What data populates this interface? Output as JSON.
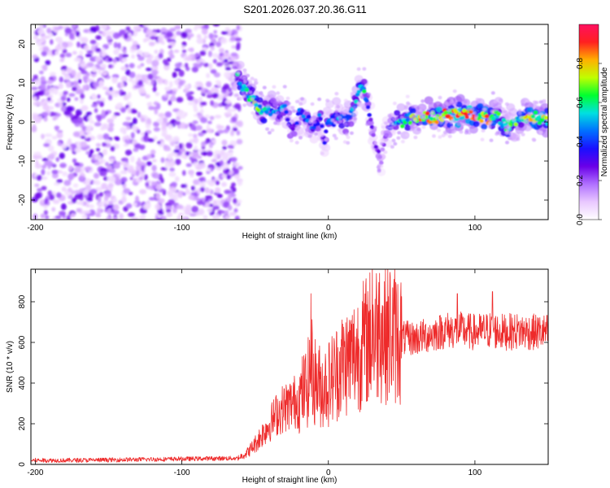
{
  "title": "S201.2026.037.20.36.G11",
  "chart_data": [
    {
      "type": "heatmap",
      "xlabel": "Height of straight line (km)",
      "ylabel": "Frequency (Hz)",
      "xlim": [
        -203,
        150
      ],
      "ylim": [
        -25,
        25
      ],
      "xticks": [
        -200,
        -100,
        0,
        100
      ],
      "yticks": [
        -20,
        -10,
        0,
        10,
        20
      ],
      "colorbar": {
        "label": "Normalized spectral amplitude",
        "range": [
          0,
          1
        ],
        "ticks": [
          0.0,
          0.2,
          0.4,
          0.6,
          0.8
        ],
        "tick_labels": [
          "0.0",
          "0.2",
          "0.4",
          "0.6",
          "0.8"
        ],
        "colors": [
          "#ffffff",
          "#e9c8ff",
          "#b070ff",
          "#6a00e8",
          "#1a10ff",
          "#0070ff",
          "#00e0e0",
          "#00ff30",
          "#c0ff00",
          "#ffb000",
          "#ff2020",
          "#ff1060"
        ]
      },
      "noise_region_x": [
        -203,
        -62
      ],
      "ridge": {
        "x": [
          -62,
          -58,
          -55,
          -50,
          -45,
          -40,
          -35,
          -30,
          -28,
          -25,
          -22,
          -20,
          -16,
          -12,
          -10,
          -6,
          -3,
          0,
          3,
          6,
          9,
          12,
          16,
          19,
          21,
          23,
          25,
          27,
          29,
          30,
          32,
          34,
          36,
          38,
          40,
          43,
          47,
          55,
          65,
          75,
          85,
          95,
          105,
          110,
          115,
          118,
          122,
          128,
          135,
          142,
          150
        ],
        "y": [
          11,
          9,
          7,
          5,
          3,
          3,
          3,
          4,
          2,
          -2,
          0,
          2,
          1,
          0,
          -2,
          1,
          -5,
          1,
          0,
          2,
          1,
          0,
          2,
          5,
          9,
          10,
          7,
          4,
          0,
          -3,
          -6,
          -8,
          -10,
          -5,
          -3,
          -1,
          0,
          1,
          1,
          1,
          2,
          2,
          1,
          1,
          2,
          0,
          -1,
          0,
          1,
          1,
          1
        ],
        "intensity": [
          0.5,
          0.55,
          0.6,
          0.65,
          0.55,
          0.5,
          0.45,
          0.45,
          0.35,
          0.3,
          0.35,
          0.4,
          0.4,
          0.4,
          0.35,
          0.4,
          0.35,
          0.4,
          0.4,
          0.45,
          0.5,
          0.5,
          0.45,
          0.5,
          0.55,
          0.6,
          0.5,
          0.4,
          0.3,
          0.25,
          0.25,
          0.25,
          0.2,
          0.2,
          0.25,
          0.4,
          0.5,
          0.6,
          0.75,
          0.8,
          0.85,
          0.85,
          0.8,
          0.75,
          0.7,
          0.55,
          0.55,
          0.6,
          0.7,
          0.75,
          0.7
        ]
      }
    },
    {
      "type": "line",
      "xlabel": "Height of straight line (km)",
      "ylabel": "SNR (10 * v/v)",
      "xlim": [
        -203,
        150
      ],
      "ylim": [
        0,
        960
      ],
      "xticks": [
        -200,
        -100,
        0,
        100
      ],
      "yticks": [
        0,
        200,
        400,
        600,
        800
      ],
      "color": "#ee2a2a",
      "series": [
        {
          "name": "SNR",
          "x": [
            -203,
            -180,
            -150,
            -120,
            -90,
            -70,
            -62,
            -55,
            -50,
            -45,
            -40,
            -35,
            -30,
            -25,
            -20,
            -18,
            -15,
            -13,
            -12,
            -10,
            -5,
            0,
            5,
            10,
            15,
            20,
            25,
            30,
            35,
            40,
            45,
            50,
            60,
            70,
            80,
            90,
            100,
            110,
            120,
            130,
            140,
            150
          ],
          "y": [
            20,
            20,
            22,
            25,
            28,
            30,
            30,
            60,
            100,
            150,
            200,
            250,
            280,
            300,
            320,
            350,
            380,
            420,
            500,
            420,
            380,
            400,
            450,
            500,
            520,
            560,
            600,
            640,
            660,
            650,
            640,
            620,
            620,
            640,
            660,
            660,
            650,
            660,
            650,
            655,
            650,
            650
          ],
          "peaks": [
            {
              "x": -12,
              "y": 840
            },
            {
              "x": 30,
              "y": 960
            },
            {
              "x": 35,
              "y": 940
            },
            {
              "x": 42,
              "y": 945
            },
            {
              "x": 88,
              "y": 840
            },
            {
              "x": 112,
              "y": 850
            }
          ]
        }
      ]
    }
  ]
}
